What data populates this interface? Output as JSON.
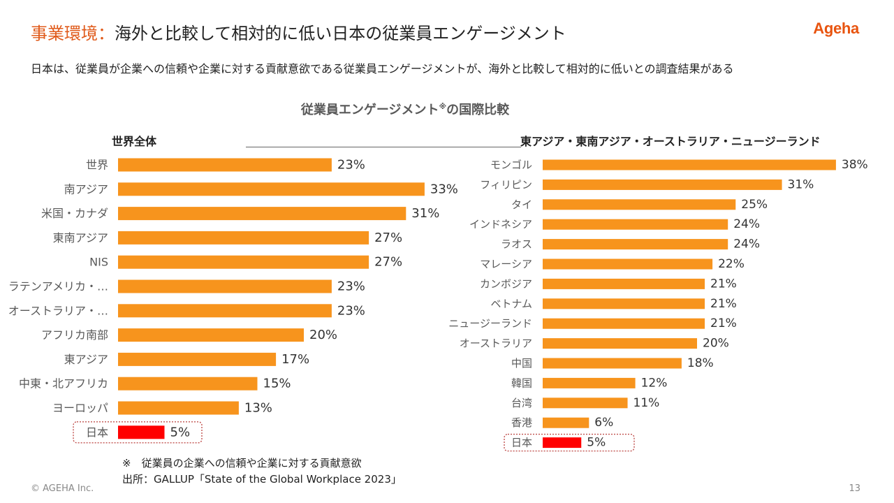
{
  "header": {
    "title_accent": "事業環境：",
    "title_main": "海外と比較して相対的に低い日本の従業員エンゲージメント",
    "logo": "Ageha",
    "subtitle": "日本は、従業員が企業への信頼や企業に対する貢献意欲である従業員エンゲージメントが、海外と比較して相対的に低いとの調査結果がある"
  },
  "chart_title_main": "従業員エンゲージメント",
  "chart_title_mark": "※",
  "chart_title_tail": "の国際比較",
  "colors": {
    "bar": "#F7941D",
    "highlight": "#FF0000",
    "highlight_box": "#C0504D",
    "accent": "#E05A1A"
  },
  "chart_data": [
    {
      "type": "bar",
      "orientation": "horizontal",
      "title": "世界全体",
      "categories": [
        "世界",
        "南アジア",
        "米国・カナダ",
        "東南アジア",
        "NIS",
        "ラテンアメリカ・…",
        "オーストラリア・…",
        "アフリカ南部",
        "東アジア",
        "中東・北アフリカ",
        "ヨーロッパ",
        "日本"
      ],
      "values": [
        23,
        33,
        31,
        27,
        27,
        23,
        23,
        20,
        17,
        15,
        13,
        5
      ],
      "value_labels": [
        "23%",
        "33%",
        "31%",
        "27%",
        "27%",
        "23%",
        "23%",
        "20%",
        "17%",
        "15%",
        "13%",
        "5%"
      ],
      "highlight": "日本",
      "unit": "%"
    },
    {
      "type": "bar",
      "orientation": "horizontal",
      "title": "東アジア・東南アジア・オーストラリア・ニュージーランド",
      "categories": [
        "モンゴル",
        "フィリピン",
        "タイ",
        "インドネシア",
        "ラオス",
        "マレーシア",
        "カンボジア",
        "ベトナム",
        "ニュージーランド",
        "オーストラリア",
        "中国",
        "韓国",
        "台湾",
        "香港",
        "日本"
      ],
      "values": [
        38,
        31,
        25,
        24,
        24,
        22,
        21,
        21,
        21,
        20,
        18,
        12,
        11,
        6,
        5
      ],
      "value_labels": [
        "38%",
        "31%",
        "25%",
        "24%",
        "24%",
        "22%",
        "21%",
        "21%",
        "21%",
        "20%",
        "18%",
        "12%",
        "11%",
        "6%",
        "5%"
      ],
      "highlight": "日本",
      "unit": "%"
    }
  ],
  "footer": {
    "note": "※　従業員の企業への信頼や企業に対する貢献意欲",
    "source": "出所：GALLUP「State of the Global Workplace 2023」",
    "copyright": "© AGEHA Inc.",
    "page": "13"
  }
}
